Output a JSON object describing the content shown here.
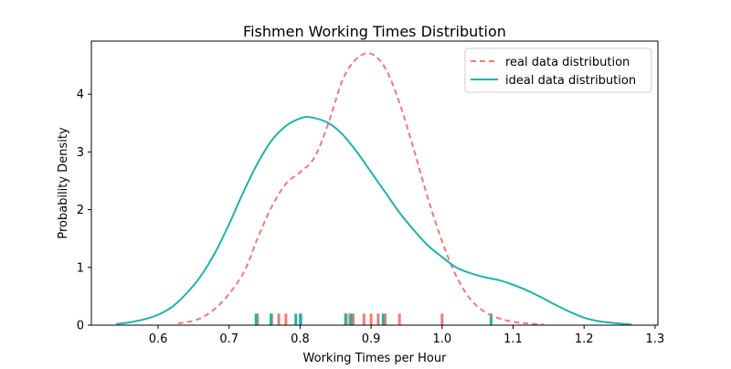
{
  "chart_data": {
    "type": "line",
    "title": "Fishmen Working Times Distribution",
    "xlabel": "Working Times per Hour",
    "ylabel": "Probability Density",
    "xlim": [
      0.506,
      1.304
    ],
    "ylim": [
      0,
      4.92
    ],
    "xticks": [
      0.6,
      0.7,
      0.8,
      0.9,
      1.0,
      1.1,
      1.2,
      1.3
    ],
    "xtick_labels": [
      "0.6",
      "0.7",
      "0.8",
      "0.9",
      "1.0",
      "1.1",
      "1.2",
      "1.3"
    ],
    "yticks": [
      0,
      1,
      2,
      3,
      4
    ],
    "ytick_labels": [
      "0",
      "1",
      "2",
      "3",
      "4"
    ],
    "grid": false,
    "legend_position": "top-right",
    "series": [
      {
        "name": "real data distribution",
        "color": "#F07B7B",
        "style": "dashed",
        "x": [
          0.628,
          0.66,
          0.69,
          0.72,
          0.74,
          0.76,
          0.78,
          0.8,
          0.82,
          0.84,
          0.86,
          0.88,
          0.9,
          0.92,
          0.94,
          0.96,
          0.98,
          1.0,
          1.02,
          1.04,
          1.06,
          1.08,
          1.1,
          1.12,
          1.143
        ],
        "y": [
          0.03,
          0.12,
          0.4,
          0.9,
          1.5,
          2.05,
          2.45,
          2.65,
          2.9,
          3.5,
          4.25,
          4.62,
          4.7,
          4.45,
          3.85,
          3.05,
          2.2,
          1.45,
          0.85,
          0.45,
          0.23,
          0.12,
          0.06,
          0.03,
          0.01
        ]
      },
      {
        "name": "ideal data data distribution",
        "color": "#20B2AA",
        "style": "solid",
        "x": [
          0.541,
          0.56,
          0.58,
          0.6,
          0.62,
          0.64,
          0.66,
          0.68,
          0.7,
          0.72,
          0.74,
          0.76,
          0.78,
          0.8,
          0.815,
          0.84,
          0.86,
          0.88,
          0.9,
          0.92,
          0.94,
          0.96,
          0.98,
          1.0,
          1.02,
          1.04,
          1.06,
          1.08,
          1.1,
          1.12,
          1.14,
          1.16,
          1.18,
          1.2,
          1.22,
          1.24,
          1.267
        ],
        "y": [
          0.02,
          0.05,
          0.1,
          0.18,
          0.32,
          0.55,
          0.85,
          1.25,
          1.75,
          2.3,
          2.8,
          3.2,
          3.45,
          3.58,
          3.6,
          3.5,
          3.3,
          3.0,
          2.65,
          2.3,
          1.95,
          1.65,
          1.38,
          1.18,
          1.0,
          0.9,
          0.83,
          0.78,
          0.7,
          0.6,
          0.48,
          0.35,
          0.23,
          0.13,
          0.07,
          0.04,
          0.01
        ]
      }
    ],
    "rugs": [
      {
        "series": "real data distribution",
        "color": "#F07B7B",
        "height": 0.2,
        "values": [
          0.74,
          0.76,
          0.77,
          0.78,
          0.8,
          0.865,
          0.87,
          0.875,
          0.89,
          0.9,
          0.91,
          0.92,
          0.94,
          1.0
        ]
      },
      {
        "series": "ideal data distribution",
        "color": "#20B2AA",
        "height": 0.2,
        "values": [
          0.738,
          0.759,
          0.794,
          0.801,
          0.864,
          0.872,
          0.917,
          1.069
        ]
      }
    ]
  }
}
